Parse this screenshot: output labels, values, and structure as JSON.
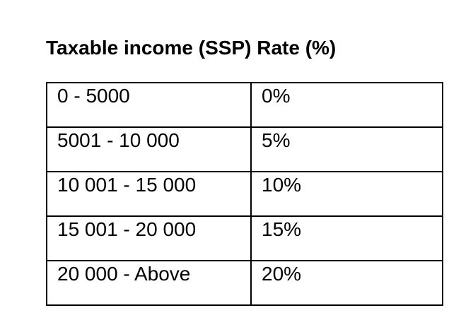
{
  "page": {
    "background": "#ffffff",
    "text_color": "#000000",
    "border_color": "#000000"
  },
  "title": "Taxable income (SSP) Rate (%)",
  "table": {
    "columns": [
      "taxable_income",
      "rate"
    ],
    "rows": [
      {
        "taxable_income": "0 - 5000",
        "rate": "0%"
      },
      {
        "taxable_income": "5001 - 10 000",
        "rate": "5%"
      },
      {
        "taxable_income": "10 001 - 15 000",
        "rate": "10%"
      },
      {
        "taxable_income": "15 001 - 20 000",
        "rate": "15%"
      },
      {
        "taxable_income": "20 000 - Above",
        "rate": "20%"
      }
    ]
  },
  "chart_data": {
    "type": "table",
    "title": "Taxable income (SSP) Rate (%)",
    "categories": [
      "0 - 5000",
      "5001 - 10 000",
      "10 001 - 15 000",
      "15 001 - 20 000",
      "20 000 - Above"
    ],
    "values": [
      0,
      5,
      10,
      15,
      20
    ],
    "ylabel": "Rate (%)"
  }
}
